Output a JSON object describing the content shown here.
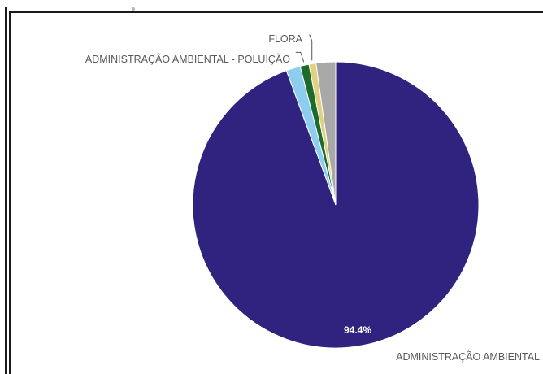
{
  "chart_data": {
    "type": "pie",
    "title": "",
    "slices": [
      {
        "name": "ADMINISTRAÇÃO AMBIENTAL",
        "value": 94.4,
        "color": "#30237f",
        "label_visible": true,
        "value_label": "94.4%"
      },
      {
        "name": "",
        "value": 1.6,
        "color": "#8dcdf0",
        "label_visible": false,
        "value_label": ""
      },
      {
        "name": "ADMINISTRAÇÃO AMBIENTAL - POLUIÇÃO",
        "value": 1.0,
        "color": "#1d6b2a",
        "label_visible": true,
        "value_label": ""
      },
      {
        "name": "FLORA",
        "value": 0.8,
        "color": "#e1d07f",
        "label_visible": true,
        "value_label": ""
      },
      {
        "name": "",
        "value": 2.2,
        "color": "#a8a8a8",
        "label_visible": false,
        "value_label": ""
      }
    ]
  }
}
